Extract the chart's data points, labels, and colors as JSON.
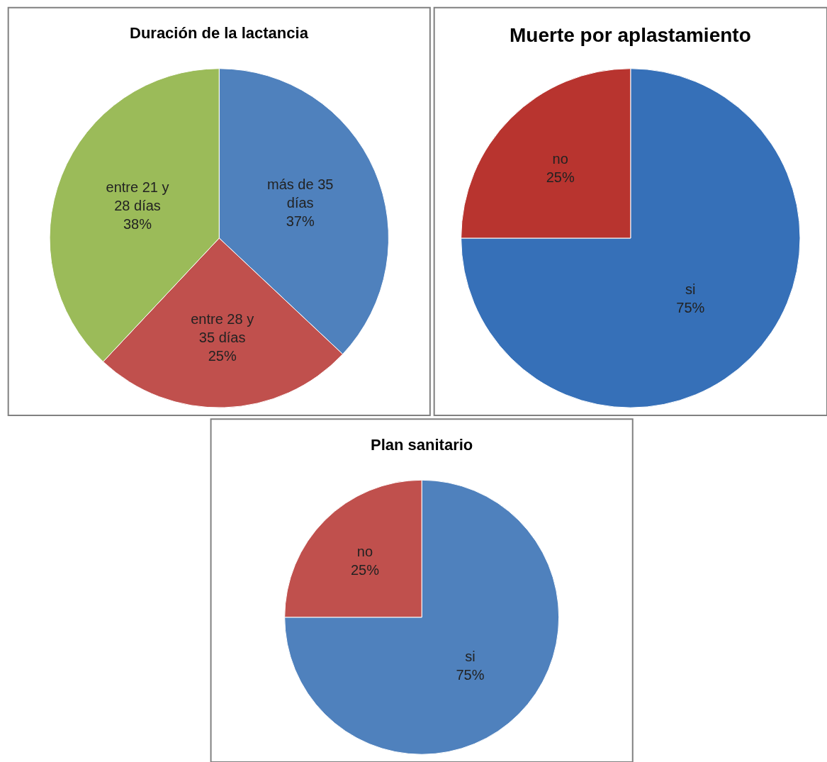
{
  "chart_data": [
    {
      "type": "pie",
      "title": "Duración de la lactancia",
      "categories": [
        "más de 35 días",
        "entre 28 y 35 días",
        "entre 21 y 28 días"
      ],
      "values": [
        37,
        25,
        38
      ],
      "value_labels": [
        "37%",
        "25%",
        "38%"
      ],
      "colors": [
        "#4f81bd",
        "#c0504d",
        "#9bbb59"
      ]
    },
    {
      "type": "pie",
      "title": "Muerte por aplastamiento",
      "categories": [
        "si",
        "no"
      ],
      "values": [
        75,
        25
      ],
      "value_labels": [
        "75%",
        "25%"
      ],
      "colors": [
        "#3670b8",
        "#b8342f"
      ]
    },
    {
      "type": "pie",
      "title": "Plan sanitario",
      "categories": [
        "si",
        "no"
      ],
      "values": [
        75,
        25
      ],
      "value_labels": [
        "75%",
        "25%"
      ],
      "colors": [
        "#4f81bd",
        "#c0504d"
      ]
    }
  ]
}
